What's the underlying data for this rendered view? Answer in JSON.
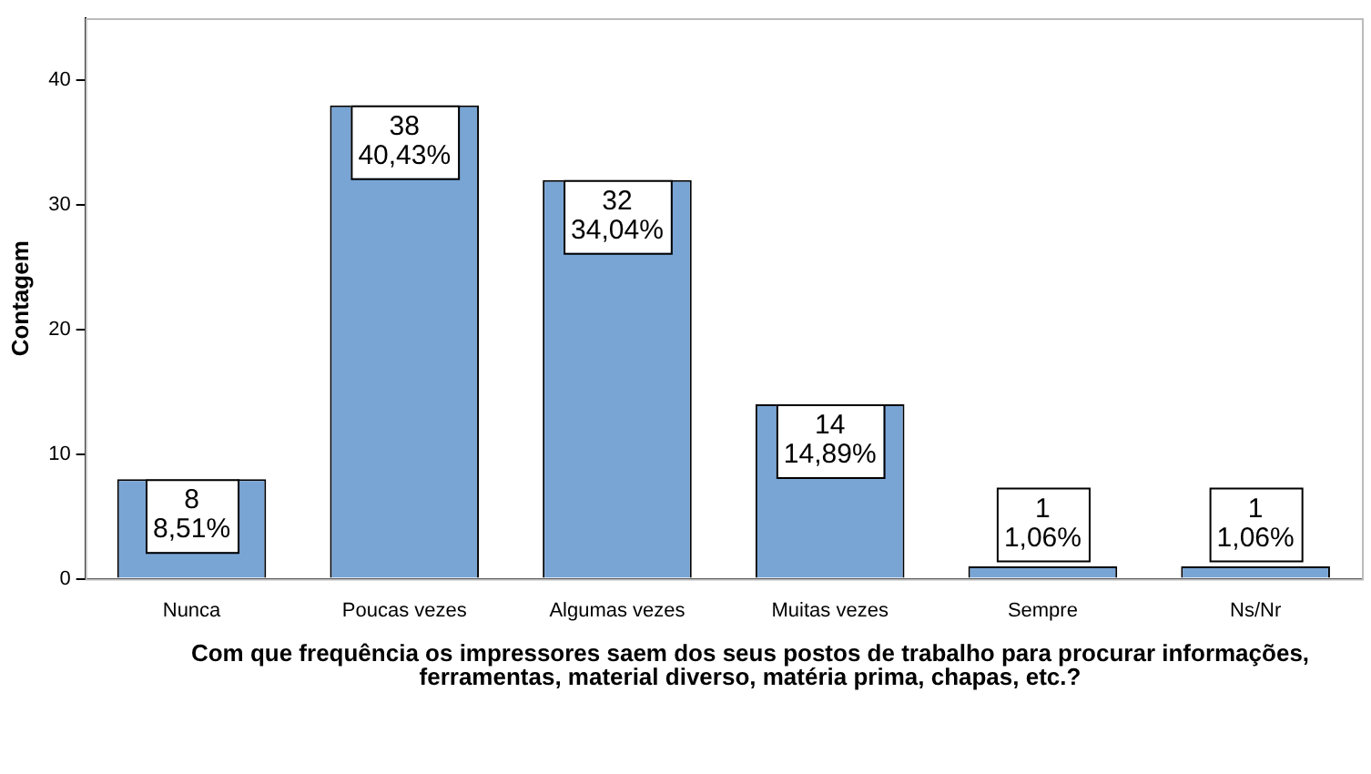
{
  "chart_data": {
    "type": "bar",
    "xlabel": "Com que frequência os impressores saem dos seus postos de trabalho para procurar informações, ferramentas, material diverso, matéria prima, chapas, etc.?",
    "ylabel": "Contagem",
    "categories": [
      "Nunca",
      "Poucas vezes",
      "Algumas vezes",
      "Muitas vezes",
      "Sempre",
      "Ns/Nr"
    ],
    "values": [
      8,
      38,
      32,
      14,
      1,
      1
    ],
    "value_labels": [
      "8\n8,51%",
      "38\n40,43%",
      "32\n34,04%",
      "14\n14,89%",
      "1\n1,06%",
      "1\n1,06%"
    ],
    "color": "#79a5d5",
    "ylim": [
      0,
      45
    ],
    "yticks": [
      0,
      10,
      20,
      30,
      40
    ],
    "legend": false
  }
}
